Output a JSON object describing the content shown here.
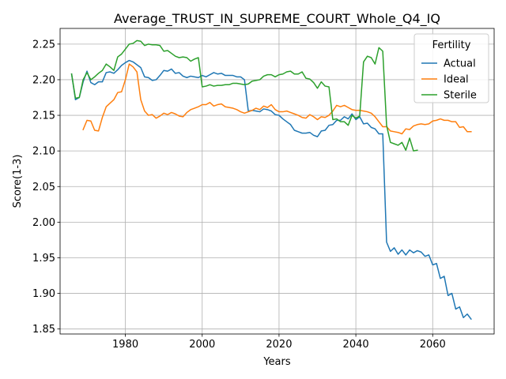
{
  "chart_data": {
    "type": "line",
    "title": "Average_TRUST_IN_SUPREME_COURT_Whole_Q4_IQ",
    "xlabel": "Years",
    "ylabel": "Score(1-3)",
    "xlim": [
      1963,
      2076
    ],
    "ylim": [
      1.843,
      2.272
    ],
    "xticks": [
      1980,
      2000,
      2020,
      2040,
      2060
    ],
    "yticks": [
      1.85,
      1.9,
      1.95,
      2.0,
      2.05,
      2.1,
      2.15,
      2.2,
      2.25
    ],
    "ytick_labels": [
      "1.85",
      "1.90",
      "1.95",
      "2.00",
      "2.05",
      "2.10",
      "2.15",
      "2.20",
      "2.25"
    ],
    "grid": true,
    "legend": {
      "title": "Fertility",
      "placement": "top-right"
    },
    "series": [
      {
        "name": "Actual",
        "color": "#1f77b4",
        "points": [
          [
            1966,
            2.208
          ],
          [
            1967,
            2.172
          ],
          [
            1968,
            2.175
          ],
          [
            1969,
            2.197
          ],
          [
            1970,
            2.212
          ],
          [
            1971,
            2.196
          ],
          [
            1972,
            2.193
          ],
          [
            1973,
            2.197
          ],
          [
            1974,
            2.197
          ],
          [
            1975,
            2.21
          ],
          [
            1976,
            2.211
          ],
          [
            1977,
            2.209
          ],
          [
            1978,
            2.214
          ],
          [
            1979,
            2.22
          ],
          [
            1980,
            2.224
          ],
          [
            1981,
            2.227
          ],
          [
            1982,
            2.225
          ],
          [
            1983,
            2.221
          ],
          [
            1984,
            2.217
          ],
          [
            1985,
            2.204
          ],
          [
            1986,
            2.203
          ],
          [
            1987,
            2.199
          ],
          [
            1988,
            2.2
          ],
          [
            1989,
            2.206
          ],
          [
            1990,
            2.213
          ],
          [
            1991,
            2.212
          ],
          [
            1992,
            2.215
          ],
          [
            1993,
            2.209
          ],
          [
            1994,
            2.21
          ],
          [
            1995,
            2.205
          ],
          [
            1996,
            2.203
          ],
          [
            1997,
            2.205
          ],
          [
            1998,
            2.204
          ],
          [
            1999,
            2.203
          ],
          [
            2000,
            2.206
          ],
          [
            2001,
            2.204
          ],
          [
            2002,
            2.207
          ],
          [
            2003,
            2.21
          ],
          [
            2004,
            2.208
          ],
          [
            2005,
            2.209
          ],
          [
            2006,
            2.206
          ],
          [
            2007,
            2.206
          ],
          [
            2008,
            2.206
          ],
          [
            2009,
            2.204
          ],
          [
            2010,
            2.204
          ],
          [
            2011,
            2.2
          ],
          [
            2012,
            2.156
          ],
          [
            2013,
            2.157
          ],
          [
            2014,
            2.156
          ],
          [
            2015,
            2.155
          ],
          [
            2016,
            2.159
          ],
          [
            2017,
            2.158
          ],
          [
            2018,
            2.156
          ],
          [
            2019,
            2.151
          ],
          [
            2020,
            2.15
          ],
          [
            2021,
            2.145
          ],
          [
            2022,
            2.141
          ],
          [
            2023,
            2.137
          ],
          [
            2024,
            2.129
          ],
          [
            2025,
            2.127
          ],
          [
            2026,
            2.125
          ],
          [
            2027,
            2.125
          ],
          [
            2028,
            2.126
          ],
          [
            2029,
            2.122
          ],
          [
            2030,
            2.12
          ],
          [
            2031,
            2.128
          ],
          [
            2032,
            2.129
          ],
          [
            2033,
            2.136
          ],
          [
            2034,
            2.137
          ],
          [
            2035,
            2.143
          ],
          [
            2036,
            2.143
          ],
          [
            2037,
            2.148
          ],
          [
            2038,
            2.145
          ],
          [
            2039,
            2.152
          ],
          [
            2040,
            2.144
          ],
          [
            2041,
            2.148
          ],
          [
            2042,
            2.138
          ],
          [
            2043,
            2.139
          ],
          [
            2044,
            2.133
          ],
          [
            2045,
            2.131
          ],
          [
            2046,
            2.124
          ],
          [
            2047,
            2.124
          ],
          [
            2048,
            1.972
          ],
          [
            2049,
            1.959
          ],
          [
            2050,
            1.964
          ],
          [
            2051,
            1.955
          ],
          [
            2052,
            1.961
          ],
          [
            2053,
            1.954
          ],
          [
            2054,
            1.961
          ],
          [
            2055,
            1.957
          ],
          [
            2056,
            1.96
          ],
          [
            2057,
            1.958
          ],
          [
            2058,
            1.952
          ],
          [
            2059,
            1.954
          ],
          [
            2060,
            1.94
          ],
          [
            2061,
            1.942
          ],
          [
            2062,
            1.921
          ],
          [
            2063,
            1.924
          ],
          [
            2064,
            1.897
          ],
          [
            2065,
            1.9
          ],
          [
            2066,
            1.878
          ],
          [
            2067,
            1.881
          ],
          [
            2068,
            1.866
          ],
          [
            2069,
            1.871
          ],
          [
            2070,
            1.864
          ]
        ]
      },
      {
        "name": "Ideal",
        "color": "#ff7f0e",
        "points": [
          [
            1969,
            2.13
          ],
          [
            1970,
            2.143
          ],
          [
            1971,
            2.142
          ],
          [
            1972,
            2.129
          ],
          [
            1973,
            2.128
          ],
          [
            1974,
            2.147
          ],
          [
            1975,
            2.162
          ],
          [
            1976,
            2.167
          ],
          [
            1977,
            2.172
          ],
          [
            1978,
            2.182
          ],
          [
            1979,
            2.183
          ],
          [
            1980,
            2.2
          ],
          [
            1981,
            2.222
          ],
          [
            1982,
            2.218
          ],
          [
            1983,
            2.211
          ],
          [
            1984,
            2.172
          ],
          [
            1985,
            2.156
          ],
          [
            1986,
            2.15
          ],
          [
            1987,
            2.151
          ],
          [
            1988,
            2.146
          ],
          [
            1989,
            2.149
          ],
          [
            1990,
            2.153
          ],
          [
            1991,
            2.151
          ],
          [
            1992,
            2.154
          ],
          [
            1993,
            2.152
          ],
          [
            1994,
            2.149
          ],
          [
            1995,
            2.148
          ],
          [
            1996,
            2.154
          ],
          [
            1997,
            2.158
          ],
          [
            1998,
            2.16
          ],
          [
            1999,
            2.162
          ],
          [
            2000,
            2.165
          ],
          [
            2001,
            2.165
          ],
          [
            2002,
            2.168
          ],
          [
            2003,
            2.163
          ],
          [
            2004,
            2.165
          ],
          [
            2005,
            2.166
          ],
          [
            2006,
            2.162
          ],
          [
            2007,
            2.161
          ],
          [
            2008,
            2.16
          ],
          [
            2009,
            2.158
          ],
          [
            2010,
            2.155
          ],
          [
            2011,
            2.153
          ],
          [
            2012,
            2.155
          ],
          [
            2013,
            2.157
          ],
          [
            2014,
            2.16
          ],
          [
            2015,
            2.158
          ],
          [
            2016,
            2.163
          ],
          [
            2017,
            2.161
          ],
          [
            2018,
            2.165
          ],
          [
            2019,
            2.158
          ],
          [
            2020,
            2.155
          ],
          [
            2021,
            2.155
          ],
          [
            2022,
            2.156
          ],
          [
            2023,
            2.154
          ],
          [
            2024,
            2.152
          ],
          [
            2025,
            2.15
          ],
          [
            2026,
            2.147
          ],
          [
            2027,
            2.146
          ],
          [
            2028,
            2.151
          ],
          [
            2029,
            2.148
          ],
          [
            2030,
            2.144
          ],
          [
            2031,
            2.148
          ],
          [
            2032,
            2.147
          ],
          [
            2033,
            2.15
          ],
          [
            2034,
            2.156
          ],
          [
            2035,
            2.164
          ],
          [
            2036,
            2.162
          ],
          [
            2037,
            2.164
          ],
          [
            2038,
            2.161
          ],
          [
            2039,
            2.158
          ],
          [
            2040,
            2.157
          ],
          [
            2041,
            2.157
          ],
          [
            2042,
            2.156
          ],
          [
            2043,
            2.155
          ],
          [
            2044,
            2.153
          ],
          [
            2045,
            2.148
          ],
          [
            2046,
            2.141
          ],
          [
            2047,
            2.134
          ],
          [
            2048,
            2.134
          ],
          [
            2049,
            2.128
          ],
          [
            2050,
            2.127
          ],
          [
            2051,
            2.126
          ],
          [
            2052,
            2.124
          ],
          [
            2053,
            2.131
          ],
          [
            2054,
            2.13
          ],
          [
            2055,
            2.135
          ],
          [
            2056,
            2.137
          ],
          [
            2057,
            2.138
          ],
          [
            2058,
            2.137
          ],
          [
            2059,
            2.138
          ],
          [
            2060,
            2.142
          ],
          [
            2061,
            2.143
          ],
          [
            2062,
            2.145
          ],
          [
            2063,
            2.143
          ],
          [
            2064,
            2.143
          ],
          [
            2065,
            2.141
          ],
          [
            2066,
            2.141
          ],
          [
            2067,
            2.133
          ],
          [
            2068,
            2.134
          ],
          [
            2069,
            2.127
          ],
          [
            2070,
            2.127
          ]
        ]
      },
      {
        "name": "Sterile",
        "color": "#2ca02c",
        "points": [
          [
            1966,
            2.208
          ],
          [
            1967,
            2.174
          ],
          [
            1968,
            2.175
          ],
          [
            1969,
            2.2
          ],
          [
            1970,
            2.21
          ],
          [
            1971,
            2.2
          ],
          [
            1972,
            2.204
          ],
          [
            1973,
            2.209
          ],
          [
            1974,
            2.213
          ],
          [
            1975,
            2.222
          ],
          [
            1976,
            2.218
          ],
          [
            1977,
            2.213
          ],
          [
            1978,
            2.232
          ],
          [
            1979,
            2.236
          ],
          [
            1980,
            2.243
          ],
          [
            1981,
            2.25
          ],
          [
            1982,
            2.251
          ],
          [
            1983,
            2.255
          ],
          [
            1984,
            2.254
          ],
          [
            1985,
            2.248
          ],
          [
            1986,
            2.25
          ],
          [
            1987,
            2.249
          ],
          [
            1988,
            2.249
          ],
          [
            1989,
            2.248
          ],
          [
            1990,
            2.24
          ],
          [
            1991,
            2.241
          ],
          [
            1992,
            2.237
          ],
          [
            1993,
            2.233
          ],
          [
            1994,
            2.231
          ],
          [
            1995,
            2.232
          ],
          [
            1996,
            2.231
          ],
          [
            1997,
            2.226
          ],
          [
            1998,
            2.229
          ],
          [
            1999,
            2.231
          ],
          [
            2000,
            2.19
          ],
          [
            2001,
            2.191
          ],
          [
            2002,
            2.193
          ],
          [
            2003,
            2.191
          ],
          [
            2004,
            2.192
          ],
          [
            2005,
            2.192
          ],
          [
            2006,
            2.193
          ],
          [
            2007,
            2.193
          ],
          [
            2008,
            2.195
          ],
          [
            2009,
            2.195
          ],
          [
            2010,
            2.194
          ],
          [
            2011,
            2.193
          ],
          [
            2012,
            2.194
          ],
          [
            2013,
            2.198
          ],
          [
            2014,
            2.199
          ],
          [
            2015,
            2.2
          ],
          [
            2016,
            2.205
          ],
          [
            2017,
            2.207
          ],
          [
            2018,
            2.207
          ],
          [
            2019,
            2.204
          ],
          [
            2020,
            2.207
          ],
          [
            2021,
            2.208
          ],
          [
            2022,
            2.211
          ],
          [
            2023,
            2.212
          ],
          [
            2024,
            2.208
          ],
          [
            2025,
            2.208
          ],
          [
            2026,
            2.211
          ],
          [
            2027,
            2.202
          ],
          [
            2028,
            2.201
          ],
          [
            2029,
            2.196
          ],
          [
            2030,
            2.188
          ],
          [
            2031,
            2.197
          ],
          [
            2032,
            2.191
          ],
          [
            2033,
            2.19
          ],
          [
            2034,
            2.144
          ],
          [
            2035,
            2.145
          ],
          [
            2036,
            2.141
          ],
          [
            2037,
            2.141
          ],
          [
            2038,
            2.136
          ],
          [
            2039,
            2.15
          ],
          [
            2040,
            2.146
          ],
          [
            2041,
            2.149
          ],
          [
            2042,
            2.225
          ],
          [
            2043,
            2.233
          ],
          [
            2044,
            2.231
          ],
          [
            2045,
            2.222
          ],
          [
            2046,
            2.245
          ],
          [
            2047,
            2.24
          ],
          [
            2048,
            2.136
          ],
          [
            2049,
            2.112
          ],
          [
            2050,
            2.11
          ],
          [
            2051,
            2.108
          ],
          [
            2052,
            2.112
          ],
          [
            2053,
            2.101
          ],
          [
            2054,
            2.118
          ],
          [
            2055,
            2.1
          ],
          [
            2056,
            2.101
          ]
        ]
      }
    ]
  }
}
